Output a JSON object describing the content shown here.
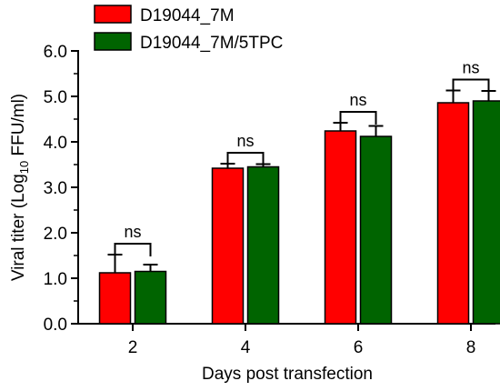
{
  "chart_data": {
    "type": "bar",
    "categories": [
      "2",
      "4",
      "6",
      "8"
    ],
    "series": [
      {
        "name": "D19044_7M",
        "color": "#ff0000",
        "values": [
          1.12,
          3.42,
          4.24,
          4.86
        ],
        "errors": [
          0.4,
          0.1,
          0.18,
          0.27
        ]
      },
      {
        "name": "D19044_7M/5TPC",
        "color": "#006400",
        "values": [
          1.15,
          3.45,
          4.12,
          4.9
        ],
        "errors": [
          0.15,
          0.06,
          0.23,
          0.22
        ]
      }
    ],
    "xlabel": "Days post transfection",
    "ylabel": {
      "main": "Viral titer (Log",
      "sub": "10",
      "rest": " FFU/ml)"
    },
    "ylim": [
      0,
      6
    ],
    "yticks": [
      "0.0",
      "1.0",
      "2.0",
      "3.0",
      "4.0",
      "5.0",
      "6.0"
    ],
    "annotations": [
      "ns",
      "ns",
      "ns",
      "ns"
    ],
    "legend": "top"
  }
}
